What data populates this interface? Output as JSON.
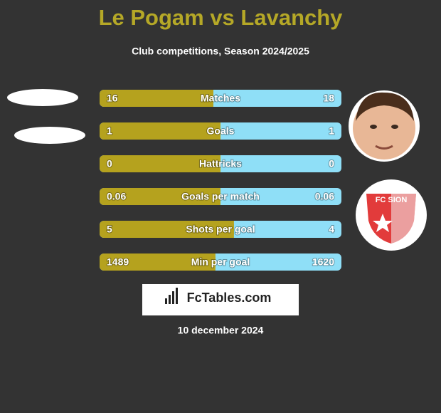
{
  "header": {
    "title": "Le Pogam vs Lavanchy",
    "subtitle": "Club competitions, Season 2024/2025"
  },
  "rows": [
    {
      "label": "Matches",
      "left": 16,
      "right": 18
    },
    {
      "label": "Goals",
      "left": 1,
      "right": 1
    },
    {
      "label": "Hattricks",
      "left": 0,
      "right": 0
    },
    {
      "label": "Goals per match",
      "left": 0.06,
      "right": 0.06
    },
    {
      "label": "Shots per goal",
      "left": 5,
      "right": 4
    },
    {
      "label": "Min per goal",
      "left": 1489,
      "right": 1620
    }
  ],
  "logo": {
    "brand": "FcTables.com",
    "badge": "FC SION"
  },
  "footer": {
    "date": "10 december 2024"
  }
}
